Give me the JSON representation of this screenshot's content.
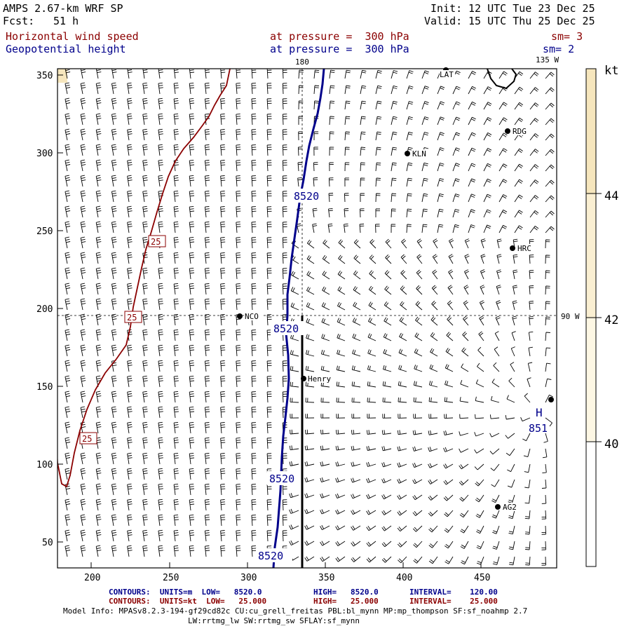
{
  "header": {
    "model": "AMPS 2.67-km WRF SP",
    "fcst_label": "Fcst:",
    "fcst_value": "51 h",
    "init_label": "Init:",
    "init_value": "12 UTC Tue 23 Dec 25",
    "valid_label": "Valid:",
    "valid_value": "15 UTC Thu 25 Dec 25",
    "field1": "Horizontal wind speed",
    "field1_level": "at pressure =  300 hPa",
    "field1_sm": "sm= 3",
    "field2": "Geopotential height",
    "field2_level": "at pressure =  300 hPa",
    "field2_sm": "sm= 2"
  },
  "map": {
    "top_labels": [
      "180",
      "135 W"
    ],
    "right_label": "90 W",
    "x_ticks": [
      "200",
      "250",
      "300",
      "350",
      "400",
      "450"
    ],
    "y_ticks": [
      "350",
      "300",
      "250",
      "200",
      "150",
      "100",
      "50"
    ],
    "stations": [
      "LAT",
      "RDG",
      "KLN",
      "HRC",
      "NCO",
      "Henry",
      "AG2"
    ],
    "height_contour_labels": [
      "8520",
      "8520",
      "8520",
      "8520"
    ],
    "wind_contour_labels": [
      "25",
      "25",
      "25"
    ],
    "high_marker": "H",
    "high_value": "851"
  },
  "colorbar": {
    "unit": "kt",
    "labels": [
      "44",
      "42",
      "40"
    ]
  },
  "footer": {
    "line1_a": "CONTOURS:  UNITS=m  LOW=   8520.0",
    "line1_b": "HIGH=   8520.0",
    "line1_c": "INTERVAL=    120.00",
    "line2_a": "CONTOURS:  UNITS=kt  LOW=   25.000",
    "line2_b": "HIGH=   25.000",
    "line2_c": "INTERVAL=    25.000",
    "model_info": "Model Info: MPASv8.2.3-194-gf29cd82c CU:cu_grell_freitas PBL:bl_mynn MP:mp_thompson SF:sf_noahmp 2.7",
    "model_info2": "LW:rrtmg_lw SW:rrtmg_sw SFLAY:sf_mynn"
  },
  "colors": {
    "height_contour": "#00008b",
    "wind_contour": "#8b0000",
    "colorbar_light": "#fdf6e0",
    "colorbar_mid": "#faf0d0",
    "colorbar_strong": "#f6e6bd"
  }
}
